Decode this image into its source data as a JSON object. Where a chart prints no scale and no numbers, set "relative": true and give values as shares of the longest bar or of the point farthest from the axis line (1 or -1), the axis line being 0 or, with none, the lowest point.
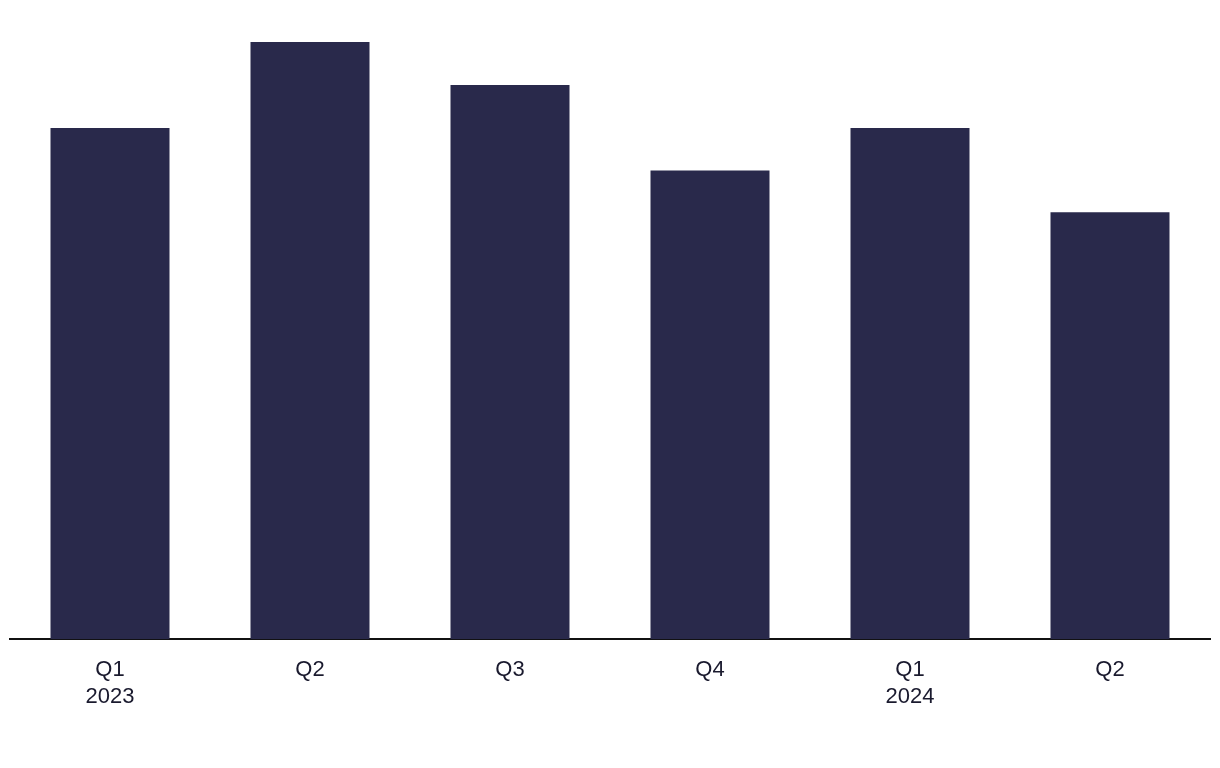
{
  "chart_data": {
    "type": "bar",
    "relative": true,
    "categories": [
      "Q1\n2023",
      "Q2",
      "Q3",
      "Q4",
      "Q1\n2024",
      "Q2"
    ],
    "values": [
      0.856,
      1,
      0.928,
      0.785,
      0.856,
      0.715
    ],
    "color": "#29294b",
    "grid": false,
    "legend": false
  }
}
